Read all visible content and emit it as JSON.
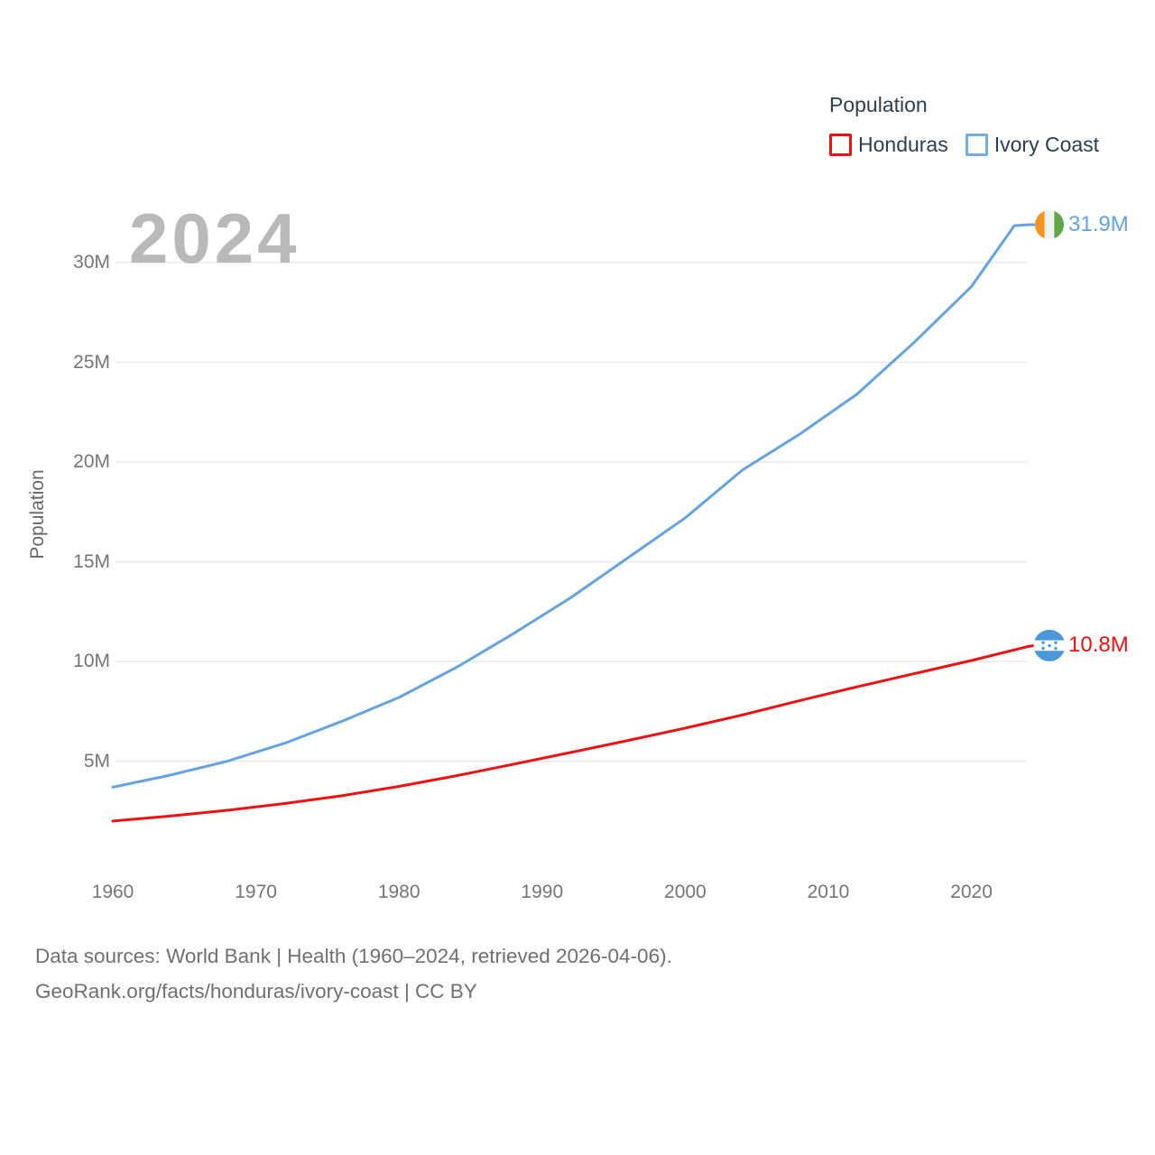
{
  "legend": {
    "title": "Population",
    "items": [
      {
        "label": "Honduras",
        "color": "#ee1111"
      },
      {
        "label": "Ivory Coast",
        "color": "#74aee8"
      }
    ]
  },
  "watermark": "2024",
  "y_axis": {
    "title": "Population",
    "ticks": [
      {
        "label": "5M",
        "value": 5
      },
      {
        "label": "10M",
        "value": 10
      },
      {
        "label": "15M",
        "value": 15
      },
      {
        "label": "20M",
        "value": 20
      },
      {
        "label": "25M",
        "value": 25
      },
      {
        "label": "30M",
        "value": 30
      }
    ]
  },
  "x_axis": {
    "ticks": [
      1960,
      1970,
      1980,
      1990,
      2000,
      2010,
      2020
    ]
  },
  "chart_data": {
    "type": "line",
    "title": "Population",
    "xlabel": "",
    "ylabel": "Population",
    "x_range": [
      1960,
      2024
    ],
    "ylim": [
      0,
      32.5
    ],
    "grid": "horizontal",
    "legend_position": "top-right",
    "watermark_year": "2024",
    "series": [
      {
        "name": "Honduras",
        "color": "#ee1111",
        "end_label": "10.8M",
        "end_value": 10.8,
        "x": [
          1960,
          1964,
          1968,
          1972,
          1976,
          1980,
          1984,
          1988,
          1992,
          1996,
          2000,
          2004,
          2008,
          2012,
          2016,
          2020,
          2024
        ],
        "values": [
          2.0,
          2.25,
          2.54,
          2.88,
          3.27,
          3.74,
          4.27,
          4.85,
          5.44,
          6.04,
          6.66,
          7.32,
          8.04,
          8.73,
          9.39,
          10.05,
          10.76
        ]
      },
      {
        "name": "Ivory Coast",
        "color": "#64a2e2",
        "end_label": "31.9M",
        "end_value": 31.9,
        "x": [
          1960,
          1964,
          1968,
          1972,
          1976,
          1980,
          1984,
          1988,
          1992,
          1996,
          2000,
          2004,
          2008,
          2012,
          2016,
          2020,
          2023,
          2024
        ],
        "values": [
          3.7,
          4.3,
          5.0,
          5.9,
          7.0,
          8.2,
          9.7,
          11.4,
          13.2,
          15.2,
          17.2,
          19.6,
          21.4,
          23.4,
          26.0,
          28.8,
          31.85,
          31.9
        ]
      }
    ]
  },
  "flags": {
    "honduras": {
      "blue": "#4a98d9",
      "white": "#ffffff"
    },
    "ivory_coast": {
      "orange": "#f5941e",
      "white": "#f2f2f2",
      "green": "#5fa746"
    }
  },
  "footer": {
    "line1": "Data sources: World Bank | Health (1960–2024, retrieved 2026-04-06).",
    "line2": "GeoRank.org/facts/honduras/ivory-coast | CC BY"
  }
}
